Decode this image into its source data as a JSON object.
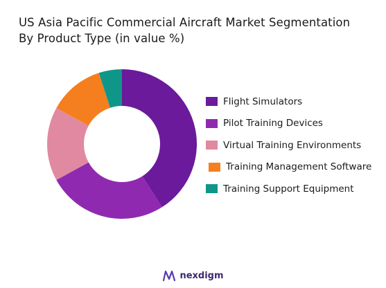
{
  "title_lines": [
    "US Asia Pacific Commercial Aircraft Market Segmentation",
    "By Product Type (in value %)"
  ],
  "chart_data": {
    "type": "pie",
    "donut": true,
    "categories": [
      "Flight Simulators",
      "Pilot Training Devices",
      "Virtual Training Environments",
      "Training Management Software",
      "Training Support Equipment"
    ],
    "values": [
      41,
      26,
      16,
      12,
      5
    ],
    "colors": [
      "#6a1a9a",
      "#8f2ab0",
      "#e089a0",
      "#f57f1f",
      "#0f9688"
    ],
    "legend_position": "right"
  },
  "brand": {
    "name": "nexdigm",
    "logo_icon": "nexdigm-logo-icon"
  }
}
